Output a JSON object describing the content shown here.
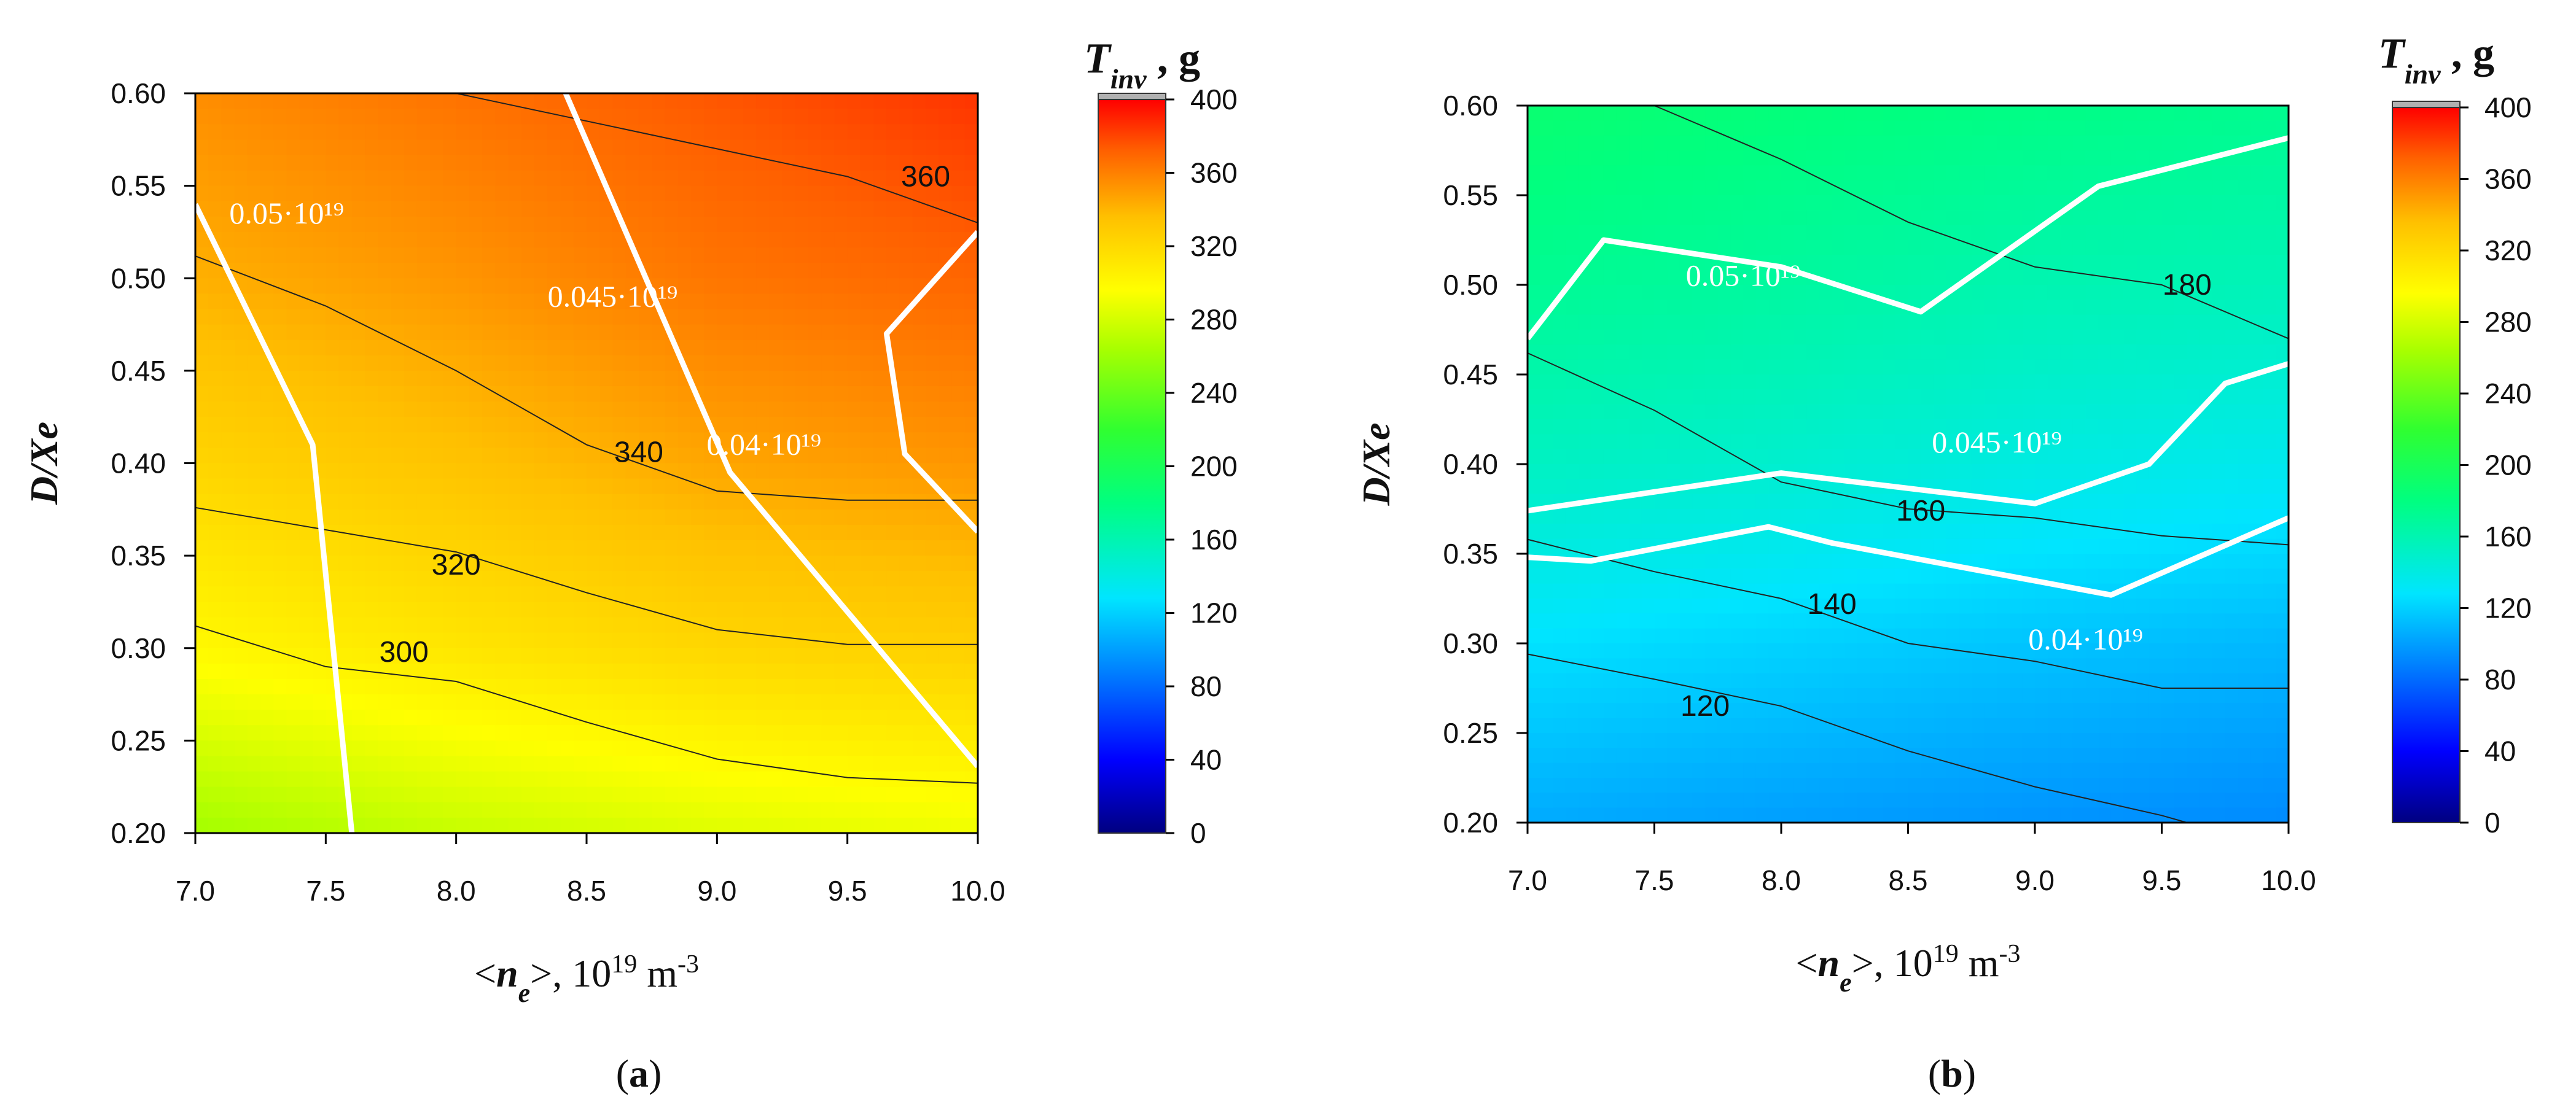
{
  "chart_data": [
    {
      "panel": "a",
      "type": "contour",
      "xlabel": "<ne>, 10^19 m^-3",
      "ylabel": "D/Xe",
      "colorbar_title": "T_inv , g",
      "colorbar_ticks": [
        "0",
        "40",
        "80",
        "120",
        "160",
        "200",
        "240",
        "280",
        "320",
        "360",
        "400"
      ],
      "colorbar_range": [
        0,
        400
      ],
      "xlim": [
        7.0,
        10.0
      ],
      "ylim": [
        0.2,
        0.6
      ],
      "xticks": [
        "7.0",
        "7.5",
        "8.0",
        "8.5",
        "9.0",
        "9.5",
        "10.0"
      ],
      "yticks": [
        "0.20",
        "0.25",
        "0.30",
        "0.35",
        "0.40",
        "0.45",
        "0.50",
        "0.55",
        "0.60"
      ],
      "field": {
        "x": [
          7.0,
          8.0,
          9.0,
          10.0
        ],
        "y": [
          0.2,
          0.3,
          0.4,
          0.5,
          0.6
        ],
        "values": [
          [
            262,
            275,
            284,
            290
          ],
          [
            300,
            312,
            322,
            326
          ],
          [
            323,
            334,
            346,
            352
          ],
          [
            342,
            352,
            364,
            370
          ],
          [
            355,
            365,
            375,
            385
          ]
        ]
      },
      "contours": [
        {
          "level": "300",
          "points": [
            [
              7.0,
              0.312
            ],
            [
              7.5,
              0.29
            ],
            [
              8.0,
              0.282
            ],
            [
              8.5,
              0.26
            ],
            [
              9.0,
              0.24
            ],
            [
              9.5,
              0.23
            ],
            [
              10.0,
              0.227
            ]
          ],
          "label_at": [
            7.8,
            0.298
          ]
        },
        {
          "level": "320",
          "points": [
            [
              7.0,
              0.376
            ],
            [
              7.5,
              0.364
            ],
            [
              8.0,
              0.352
            ],
            [
              8.5,
              0.33
            ],
            [
              9.0,
              0.31
            ],
            [
              9.5,
              0.302
            ],
            [
              10.0,
              0.302
            ]
          ],
          "label_at": [
            8.0,
            0.345
          ]
        },
        {
          "level": "340",
          "points": [
            [
              7.0,
              0.512
            ],
            [
              7.5,
              0.485
            ],
            [
              8.0,
              0.45
            ],
            [
              8.5,
              0.41
            ],
            [
              9.0,
              0.385
            ],
            [
              9.5,
              0.38
            ],
            [
              10.0,
              0.38
            ]
          ],
          "label_at": [
            8.7,
            0.406
          ]
        },
        {
          "level": "360",
          "points": [
            [
              8.0,
              0.6
            ],
            [
              8.5,
              0.585
            ],
            [
              9.0,
              0.57
            ],
            [
              9.5,
              0.555
            ],
            [
              10.0,
              0.53
            ]
          ],
          "label_at": [
            9.8,
            0.555
          ]
        }
      ],
      "white_lines": [
        {
          "label": "0.05·10¹⁹",
          "points": [
            [
              7.0,
              0.54
            ],
            [
              7.45,
              0.41
            ],
            [
              7.6,
              0.2
            ]
          ],
          "label_at": [
            7.35,
            0.535
          ]
        },
        {
          "label": "0.045·10¹⁹",
          "points": [
            [
              8.42,
              0.6
            ],
            [
              9.05,
              0.395
            ],
            [
              10.0,
              0.236
            ]
          ],
          "label_at": [
            8.6,
            0.49
          ]
        },
        {
          "label": "0.04·10¹⁹",
          "points": [
            [
              10.0,
              0.525
            ],
            [
              9.65,
              0.47
            ],
            [
              9.72,
              0.405
            ],
            [
              10.0,
              0.363
            ]
          ],
          "label_at": [
            9.18,
            0.41
          ]
        }
      ]
    },
    {
      "panel": "b",
      "type": "contour",
      "xlabel": "<ne>, 10^19 m^-3",
      "ylabel": "D/Xe",
      "colorbar_title": "T_inv , g",
      "colorbar_ticks": [
        "0",
        "40",
        "80",
        "120",
        "160",
        "200",
        "240",
        "280",
        "320",
        "360",
        "400"
      ],
      "colorbar_range": [
        0,
        400
      ],
      "xlim": [
        7.0,
        10.0
      ],
      "ylim": [
        0.2,
        0.6
      ],
      "xticks": [
        "7.0",
        "7.5",
        "8.0",
        "8.5",
        "9.0",
        "9.5",
        "10.0"
      ],
      "yticks": [
        "0.20",
        "0.25",
        "0.30",
        "0.35",
        "0.40",
        "0.45",
        "0.50",
        "0.55",
        "0.60"
      ],
      "field": {
        "x": [
          7.0,
          8.0,
          9.0,
          10.0
        ],
        "y": [
          0.2,
          0.3,
          0.4,
          0.5,
          0.6
        ],
        "values": [
          [
            105,
            100,
            96,
            92
          ],
          [
            127,
            121,
            115,
            110
          ],
          [
            153,
            148,
            140,
            135
          ],
          [
            172,
            167,
            160,
            157
          ],
          [
            188,
            183,
            178,
            174
          ]
        ]
      },
      "contours": [
        {
          "level": "120",
          "points": [
            [
              7.0,
              0.294
            ],
            [
              7.5,
              0.28
            ],
            [
              8.0,
              0.265
            ],
            [
              8.5,
              0.24
            ],
            [
              9.0,
              0.22
            ],
            [
              9.5,
              0.204
            ],
            [
              9.6,
              0.2
            ]
          ],
          "label_at": [
            7.7,
            0.265
          ]
        },
        {
          "level": "140",
          "points": [
            [
              7.0,
              0.358
            ],
            [
              7.5,
              0.34
            ],
            [
              8.0,
              0.325
            ],
            [
              8.5,
              0.3
            ],
            [
              9.0,
              0.29
            ],
            [
              9.5,
              0.275
            ],
            [
              10.0,
              0.275
            ]
          ],
          "label_at": [
            8.2,
            0.322
          ]
        },
        {
          "level": "160",
          "points": [
            [
              7.0,
              0.462
            ],
            [
              7.5,
              0.43
            ],
            [
              8.0,
              0.39
            ],
            [
              8.5,
              0.375
            ],
            [
              9.0,
              0.37
            ],
            [
              9.5,
              0.36
            ],
            [
              10.0,
              0.355
            ]
          ],
          "label_at": [
            8.55,
            0.374
          ]
        },
        {
          "level": "180",
          "points": [
            [
              7.5,
              0.6
            ],
            [
              8.0,
              0.57
            ],
            [
              8.5,
              0.535
            ],
            [
              9.0,
              0.51
            ],
            [
              9.5,
              0.5
            ],
            [
              10.0,
              0.47
            ]
          ],
          "label_at": [
            9.6,
            0.5
          ]
        }
      ],
      "white_lines": [
        {
          "label": "0.05·10¹⁹",
          "points": [
            [
              7.0,
              0.47
            ],
            [
              7.3,
              0.525
            ],
            [
              8.0,
              0.51
            ],
            [
              8.55,
              0.485
            ],
            [
              9.25,
              0.555
            ],
            [
              10.0,
              0.582
            ]
          ],
          "label_at": [
            7.85,
            0.505
          ]
        },
        {
          "label": "0.045·10¹⁹",
          "points": [
            [
              7.0,
              0.374
            ],
            [
              8.0,
              0.395
            ],
            [
              9.0,
              0.378
            ],
            [
              9.45,
              0.4
            ],
            [
              9.75,
              0.445
            ],
            [
              10.0,
              0.456
            ]
          ],
          "label_at": [
            8.85,
            0.412
          ]
        },
        {
          "label": "0.04·10¹⁹",
          "points": [
            [
              7.0,
              0.348
            ],
            [
              7.25,
              0.346
            ],
            [
              7.95,
              0.365
            ],
            [
              8.2,
              0.356
            ],
            [
              9.3,
              0.327
            ],
            [
              10.0,
              0.37
            ]
          ],
          "label_at": [
            9.2,
            0.302
          ]
        }
      ]
    }
  ],
  "panel_labels": [
    "(a)",
    "(b)"
  ]
}
